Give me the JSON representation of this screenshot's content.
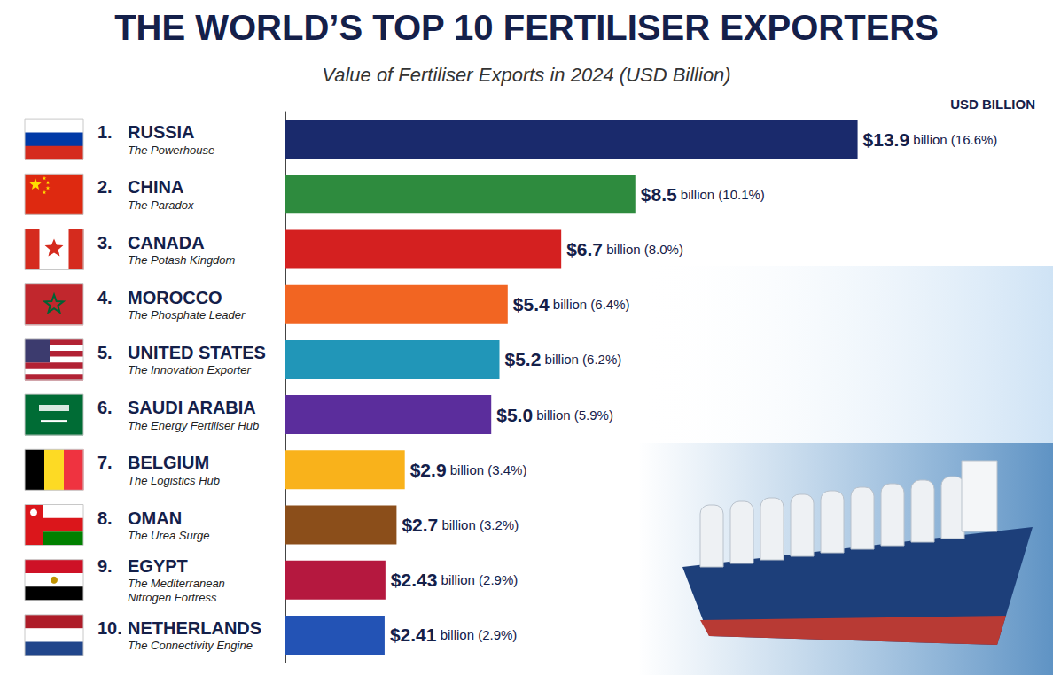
{
  "chart_data": {
    "type": "bar",
    "title": "THE WORLD’S TOP 10 FERTILISER EXPORTERS",
    "subtitle": "Value of Fertiliser Exports in 2024 (USD Billion)",
    "x_label": "USD BILLION",
    "orientation": "horizontal",
    "categories": [
      "1. RUSSIA",
      "2. CHINA",
      "3. CANADA",
      "4. MOROCCO",
      "5. UNITED STATES",
      "6. SAUDI ARABIA",
      "7. BELGIUM",
      "8. OMAN",
      "9. EGYPT",
      "10. NETHERLANDS"
    ],
    "descriptions": [
      "The Powerhouse",
      "The Paradox",
      "The Potash Kingdom",
      "The Phosphate Leader",
      "The Innovation Exporter",
      "The Energy Fertiliser Hub",
      "The Logistics Hub",
      "The Urea Surge",
      "The Mediterranean Nitrogen Fortress",
      "The Connectivity Engine"
    ],
    "values": [
      13.9,
      8.5,
      6.7,
      5.4,
      5.2,
      5.0,
      2.9,
      2.7,
      2.43,
      2.41
    ],
    "value_labels": [
      "$13.9 billion (16.6%)",
      "$8.5 billion (10.1%)",
      "$6.7 billion (8.0%)",
      "$5.4 billion (6.4%)",
      "$5.2 billion (6.2%)",
      "$5.0 billion (5.9%)",
      "$2.9 billion (3.4%)",
      "$2.7 billion (3.2%)",
      "$2.43 billion (2.9%)",
      "$2.41 billion (2.9%)"
    ],
    "colors": [
      "#1a2a6c",
      "#2e8b3e",
      "#d42020",
      "#f26522",
      "#2196b8",
      "#5b2d9c",
      "#f9b21b",
      "#8b4e1a",
      "#b5183f",
      "#2353b5"
    ],
    "xlim": [
      0,
      18
    ],
    "data_labels": true,
    "tick_labels": "y",
    "grid": false
  }
}
